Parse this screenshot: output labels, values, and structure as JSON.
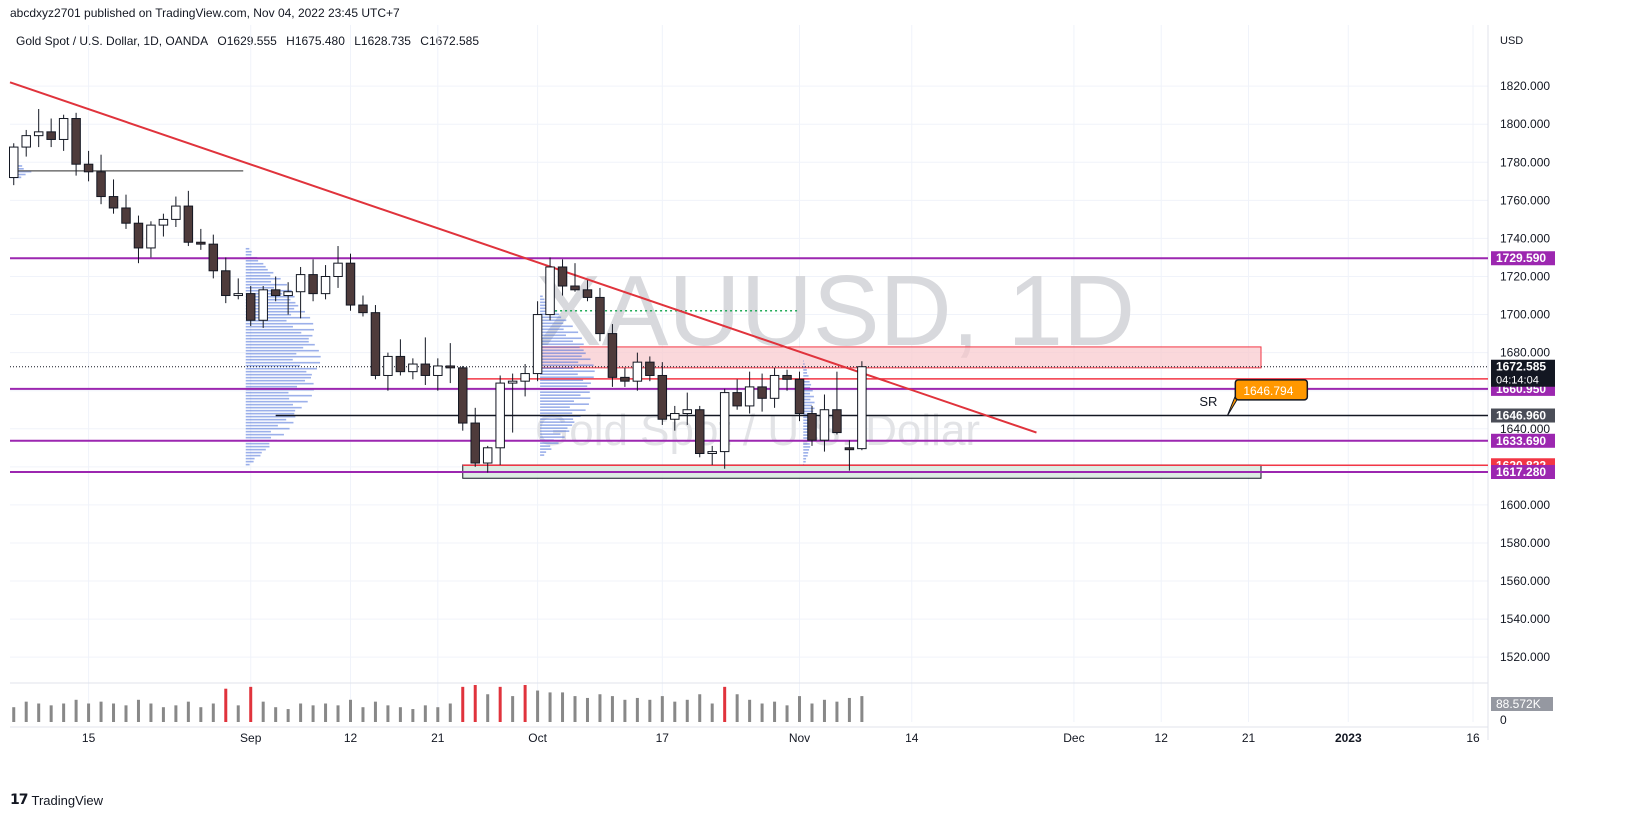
{
  "header": {
    "published_by": "abcdxyz2701 published on TradingView.com, Nov 04, 2022 23:45 UTC+7"
  },
  "symbol": {
    "name": "Gold Spot / U.S. Dollar, 1D, OANDA",
    "open": "O1629.555",
    "high": "H1675.480",
    "low": "L1628.735",
    "close": "C1672.585"
  },
  "watermark": {
    "ticker": "XAUUSD, 1D",
    "description": "Gold Spot / U.S. Dollar"
  },
  "footer": {
    "logo_text": "TradingView",
    "logo_mark": "17"
  },
  "colors": {
    "up_candle": "#ffffff",
    "down_candle": "#4e3b3b",
    "trend_line": "#e0333c",
    "purple_level": "#9c27b0",
    "red_level": "#f23645",
    "black_level": "#131722",
    "supply_zone": "#f8c8cc",
    "demand_zone": "#d4e7dc",
    "volume_up": "#888888",
    "volume_down": "#e0333c",
    "profile": "#4a6fd8",
    "sr_badge": "#ff9800"
  },
  "chart_data": {
    "type": "candlestick",
    "instrument": "XAUUSD",
    "timeframe": "1D",
    "y_axis": {
      "unit": "USD",
      "ylim": [
        1508,
        1839
      ],
      "ticks": [
        1520,
        1540,
        1560,
        1580,
        1600,
        1620,
        1640,
        1660,
        1680,
        1700,
        1720,
        1740,
        1760,
        1780,
        1800,
        1820
      ],
      "tick_labels": [
        "1520.000",
        "1540.000",
        "1560.000",
        "1580.000",
        "1600.000",
        "1620.000",
        "1640.000",
        "1660.000",
        "1680.000",
        "1700.000",
        "1720.000",
        "1740.000",
        "1760.000",
        "1780.000",
        "1800.000",
        "1820.000"
      ]
    },
    "x_axis": {
      "ticks": [
        {
          "label": "15",
          "bar": 6
        },
        {
          "label": "Sep",
          "bar": 19
        },
        {
          "label": "12",
          "bar": 27
        },
        {
          "label": "21",
          "bar": 34
        },
        {
          "label": "Oct",
          "bar": 42
        },
        {
          "label": "17",
          "bar": 52
        },
        {
          "label": "Nov",
          "bar": 63
        },
        {
          "label": "14",
          "bar": 72
        },
        {
          "label": "Dec",
          "bar": 85
        },
        {
          "label": "12",
          "bar": 92
        },
        {
          "label": "21",
          "bar": 99
        },
        {
          "label": "2023",
          "bar": 107
        },
        {
          "label": "16",
          "bar": 117
        }
      ],
      "bar_range": [
        -0.3,
        118.2
      ]
    },
    "candles": [
      {
        "o": 1772,
        "h": 1790,
        "l": 1768,
        "c": 1788,
        "v": 0.4
      },
      {
        "o": 1788,
        "h": 1797,
        "l": 1783,
        "c": 1794,
        "v": 0.55
      },
      {
        "o": 1794,
        "h": 1808,
        "l": 1788,
        "c": 1796,
        "v": 0.5
      },
      {
        "o": 1796,
        "h": 1803,
        "l": 1788,
        "c": 1792,
        "v": 0.45
      },
      {
        "o": 1792,
        "h": 1805,
        "l": 1786,
        "c": 1803,
        "v": 0.5
      },
      {
        "o": 1803,
        "h": 1806,
        "l": 1773,
        "c": 1779,
        "v": 0.6
      },
      {
        "o": 1779,
        "h": 1786,
        "l": 1770,
        "c": 1775,
        "v": 0.5
      },
      {
        "o": 1775,
        "h": 1784,
        "l": 1758,
        "c": 1762,
        "v": 0.55
      },
      {
        "o": 1762,
        "h": 1771,
        "l": 1753,
        "c": 1756,
        "v": 0.5
      },
      {
        "o": 1756,
        "h": 1763,
        "l": 1745,
        "c": 1748,
        "v": 0.45
      },
      {
        "o": 1748,
        "h": 1752,
        "l": 1727,
        "c": 1735,
        "v": 0.6
      },
      {
        "o": 1735,
        "h": 1749,
        "l": 1730,
        "c": 1747,
        "v": 0.5
      },
      {
        "o": 1747,
        "h": 1753,
        "l": 1741,
        "c": 1750,
        "v": 0.4
      },
      {
        "o": 1750,
        "h": 1762,
        "l": 1746,
        "c": 1757,
        "v": 0.45
      },
      {
        "o": 1757,
        "h": 1765,
        "l": 1736,
        "c": 1738,
        "v": 0.55
      },
      {
        "o": 1738,
        "h": 1745,
        "l": 1734,
        "c": 1737,
        "v": 0.4
      },
      {
        "o": 1737,
        "h": 1742,
        "l": 1719,
        "c": 1723,
        "v": 0.5
      },
      {
        "o": 1723,
        "h": 1730,
        "l": 1706,
        "c": 1710,
        "v": 0.9,
        "vr": true
      },
      {
        "o": 1710,
        "h": 1719,
        "l": 1708,
        "c": 1711,
        "v": 0.45
      },
      {
        "o": 1711,
        "h": 1715,
        "l": 1694,
        "c": 1697,
        "v": 0.95,
        "vr": true
      },
      {
        "o": 1697,
        "h": 1715,
        "l": 1693,
        "c": 1713,
        "v": 0.55
      },
      {
        "o": 1713,
        "h": 1720,
        "l": 1707,
        "c": 1710,
        "v": 0.4
      },
      {
        "o": 1710,
        "h": 1717,
        "l": 1700,
        "c": 1712,
        "v": 0.35
      },
      {
        "o": 1712,
        "h": 1725,
        "l": 1698,
        "c": 1721,
        "v": 0.5
      },
      {
        "o": 1721,
        "h": 1729,
        "l": 1707,
        "c": 1711,
        "v": 0.45
      },
      {
        "o": 1711,
        "h": 1726,
        "l": 1708,
        "c": 1720,
        "v": 0.5
      },
      {
        "o": 1720,
        "h": 1736,
        "l": 1714,
        "c": 1727,
        "v": 0.45
      },
      {
        "o": 1727,
        "h": 1732,
        "l": 1702,
        "c": 1705,
        "v": 0.6
      },
      {
        "o": 1705,
        "h": 1710,
        "l": 1699,
        "c": 1701,
        "v": 0.4
      },
      {
        "o": 1701,
        "h": 1705,
        "l": 1666,
        "c": 1668,
        "v": 0.55
      },
      {
        "o": 1668,
        "h": 1680,
        "l": 1660,
        "c": 1678,
        "v": 0.45
      },
      {
        "o": 1678,
        "h": 1687,
        "l": 1668,
        "c": 1670,
        "v": 0.4
      },
      {
        "o": 1670,
        "h": 1677,
        "l": 1666,
        "c": 1674,
        "v": 0.35
      },
      {
        "o": 1674,
        "h": 1688,
        "l": 1663,
        "c": 1668,
        "v": 0.45
      },
      {
        "o": 1668,
        "h": 1677,
        "l": 1660,
        "c": 1673,
        "v": 0.4
      },
      {
        "o": 1673,
        "h": 1685,
        "l": 1664,
        "c": 1672,
        "v": 0.5
      },
      {
        "o": 1672,
        "h": 1673,
        "l": 1639,
        "c": 1643,
        "v": 0.95,
        "vr": true
      },
      {
        "o": 1643,
        "h": 1651,
        "l": 1620,
        "c": 1622,
        "v": 1.0,
        "vr": true
      },
      {
        "o": 1622,
        "h": 1631,
        "l": 1617,
        "c": 1630,
        "v": 0.75
      },
      {
        "o": 1630,
        "h": 1668,
        "l": 1621,
        "c": 1664,
        "v": 0.95,
        "vr": true
      },
      {
        "o": 1664,
        "h": 1669,
        "l": 1638,
        "c": 1665,
        "v": 0.7
      },
      {
        "o": 1665,
        "h": 1674,
        "l": 1657,
        "c": 1669,
        "v": 1.0,
        "vr": true
      },
      {
        "o": 1669,
        "h": 1707,
        "l": 1665,
        "c": 1700,
        "v": 0.85
      },
      {
        "o": 1700,
        "h": 1730,
        "l": 1697,
        "c": 1725,
        "v": 0.8
      },
      {
        "o": 1725,
        "h": 1729,
        "l": 1710,
        "c": 1715,
        "v": 0.8
      },
      {
        "o": 1715,
        "h": 1727,
        "l": 1712,
        "c": 1713,
        "v": 0.7
      },
      {
        "o": 1713,
        "h": 1718,
        "l": 1707,
        "c": 1709,
        "v": 0.65
      },
      {
        "o": 1709,
        "h": 1714,
        "l": 1686,
        "c": 1690,
        "v": 0.75
      },
      {
        "o": 1690,
        "h": 1695,
        "l": 1662,
        "c": 1667,
        "v": 0.7
      },
      {
        "o": 1667,
        "h": 1672,
        "l": 1662,
        "c": 1665,
        "v": 0.6
      },
      {
        "o": 1665,
        "h": 1680,
        "l": 1660,
        "c": 1675,
        "v": 0.65
      },
      {
        "o": 1675,
        "h": 1678,
        "l": 1665,
        "c": 1668,
        "v": 0.6
      },
      {
        "o": 1668,
        "h": 1675,
        "l": 1642,
        "c": 1645,
        "v": 0.7
      },
      {
        "o": 1645,
        "h": 1652,
        "l": 1639,
        "c": 1648,
        "v": 0.55
      },
      {
        "o": 1648,
        "h": 1659,
        "l": 1642,
        "c": 1650,
        "v": 0.6
      },
      {
        "o": 1650,
        "h": 1652,
        "l": 1625,
        "c": 1627,
        "v": 0.75
      },
      {
        "o": 1627,
        "h": 1631,
        "l": 1621,
        "c": 1628,
        "v": 0.5
      },
      {
        "o": 1628,
        "h": 1661,
        "l": 1619,
        "c": 1659,
        "v": 0.95,
        "vr": true
      },
      {
        "o": 1659,
        "h": 1666,
        "l": 1650,
        "c": 1652,
        "v": 0.75
      },
      {
        "o": 1652,
        "h": 1670,
        "l": 1648,
        "c": 1662,
        "v": 0.6
      },
      {
        "o": 1662,
        "h": 1669,
        "l": 1649,
        "c": 1656,
        "v": 0.5
      },
      {
        "o": 1656,
        "h": 1672,
        "l": 1651,
        "c": 1668,
        "v": 0.55
      },
      {
        "o": 1668,
        "h": 1671,
        "l": 1660,
        "c": 1666,
        "v": 0.45
      },
      {
        "o": 1666,
        "h": 1670,
        "l": 1644,
        "c": 1648,
        "v": 0.7
      },
      {
        "o": 1648,
        "h": 1652,
        "l": 1631,
        "c": 1634,
        "v": 0.5
      },
      {
        "o": 1634,
        "h": 1658,
        "l": 1628,
        "c": 1650,
        "v": 0.6
      },
      {
        "o": 1650,
        "h": 1670,
        "l": 1637,
        "c": 1638,
        "v": 0.55
      },
      {
        "o": 1630,
        "h": 1634,
        "l": 1618,
        "c": 1629,
        "v": 0.65
      },
      {
        "o": 1629.555,
        "h": 1675.48,
        "l": 1628.735,
        "c": 1672.585,
        "v": 0.7
      }
    ],
    "horizontal_levels": [
      {
        "price": 1729.59,
        "color": "purple",
        "label": "1729.590",
        "x_start_bar": -0.3
      },
      {
        "price": 1666.226,
        "color": "red",
        "label": "1666.226",
        "x_start_bar": 36
      },
      {
        "price": 1660.95,
        "color": "purple",
        "label": "1660.950",
        "x_start_bar": -0.3
      },
      {
        "price": 1646.96,
        "color": "black",
        "label": "1646.960",
        "x_start_bar": 21
      },
      {
        "price": 1633.69,
        "color": "purple",
        "label": "1633.690",
        "x_start_bar": -0.3
      },
      {
        "price": 1620.822,
        "color": "red",
        "label": "1620.822",
        "x_start_bar": 36
      },
      {
        "price": 1617.28,
        "color": "purple",
        "label": "1617.280",
        "x_start_bar": -0.3
      }
    ],
    "short_level": {
      "price": 1775.5,
      "bar_start": -0.3,
      "bar_end": 18.4
    },
    "dotted_level": {
      "price": 1702,
      "bar_start": 43,
      "bar_end": 63
    },
    "current_price": {
      "price": 1672.585,
      "label": "1672.585",
      "countdown": "04:14:04"
    },
    "zones": [
      {
        "type": "supply",
        "top": 1683,
        "bottom": 1672,
        "bar_start": 42,
        "bar_end": 100
      },
      {
        "type": "demand",
        "top": 1621,
        "bottom": 1614,
        "bar_start": 36,
        "bar_end": 100
      }
    ],
    "trend_line": {
      "from": {
        "bar": -0.3,
        "price": 1822
      },
      "to": {
        "bar": 82,
        "price": 1638
      }
    },
    "sr_annotation": {
      "text": "SR",
      "badge": "1646.794",
      "price": 1646.794,
      "bar": 97.3
    },
    "volume": {
      "last_label": "88.572K",
      "zero_label": "0"
    }
  }
}
